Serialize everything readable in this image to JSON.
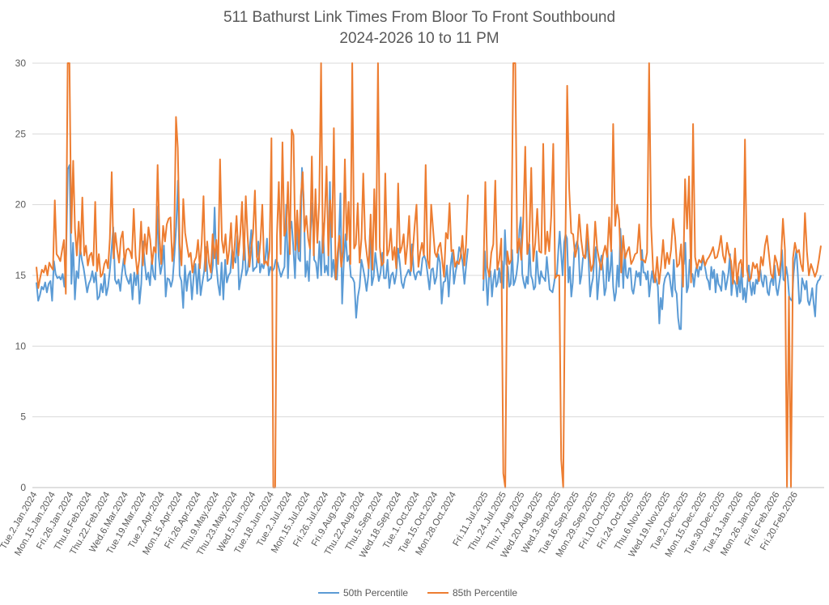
{
  "chart_data": {
    "type": "line",
    "title": "511 Bathurst Link Times From Bloor To Front Southbound",
    "subtitle": "2024-2026 10 to 11 PM",
    "xlabel": "",
    "ylabel": "",
    "ylim": [
      0,
      30
    ],
    "yticks": [
      0,
      5,
      10,
      15,
      20,
      25,
      30
    ],
    "grid": true,
    "legend_position": "bottom",
    "x_tick_labels": [
      "Tue.2.Jan.2024",
      "Mon.15.Jan.2024",
      "Fri.26.Jan.2024",
      "Thu.8.Feb.2024",
      "Thu.22.Feb.2024",
      "Wed.6.Mar.2024",
      "Tue.19.Mar.2024",
      "Tue.2.Apr.2024",
      "Mon.15.Apr.2024",
      "Fri.26.Apr.2024",
      "Thu.9.May.2024",
      "Thu.23.May.2024",
      "Wed.5.Jun.2024",
      "Tue.18.Jun.2024",
      "Tue.2.Jul.2024",
      "Mon.15.Jul.2024",
      "Fri.26.Jul.2024",
      "Fri.9.Aug.2024",
      "Thu.22.Aug.2024",
      "Thu.5.Sep.2024",
      "Wed.18.Sep.2024",
      "Tue.1.Oct.2024",
      "Tue.15.Oct.2024",
      "Mon.28.Oct.2024",
      "Fri.11.Jul.2025",
      "Thu.24.Jul.2025",
      "Thu.7.Aug.2025",
      "Wed.20.Aug.2025",
      "Wed.3.Sep.2025",
      "Tue.16.Sep.2025",
      "Mon.29.Sep.2025",
      "Fri.10.Oct.2025",
      "Fri.24.Oct.2025",
      "Thu.6.Nov.2025",
      "Wed.19.Nov.2025",
      "Tue.2.Dec.2025",
      "Mon.15.Dec.2025",
      "Tue.30.Dec.2025",
      "Tue.13.Jan.2026",
      "Mon.26.Jan.2026",
      "Fri.6.Feb.2026",
      "Fri.20.Feb.2026"
    ],
    "series": [
      {
        "name": "50th Percentile",
        "color": "#5b9bd5",
        "segments": [
          [
            14.5,
            13.2,
            13.6,
            14.2,
            14.0,
            14.5,
            13.8,
            14.4,
            14.6,
            13.2,
            16.0,
            15.1,
            14.8,
            14.9,
            14.7,
            15.1,
            14.2,
            16.5,
            22.5,
            22.8,
            14.4,
            17.3,
            13.3,
            15.3,
            14.8,
            17.0,
            16.1,
            15.5,
            14.7,
            13.8,
            14.4,
            14.7,
            15.3,
            14.5,
            15.2,
            13.3,
            13.5,
            14.4,
            13.8,
            15.1,
            13.6,
            14.2,
            15.3,
            16.8,
            18.4,
            14.7,
            14.4,
            14.7,
            13.9,
            15.2,
            16.2,
            15.1,
            14.7,
            14.4,
            15.1,
            13.3,
            15.2,
            14.3,
            15.6,
            13.0,
            14.4,
            17.4,
            15.9,
            14.7,
            15.2,
            14.3,
            16.1,
            15.0,
            14.7,
            19.9,
            16.3,
            15.1,
            15.8,
            17.1,
            13.5,
            14.8,
            14.7,
            14.2,
            14.7,
            16.5,
            18.4,
            21.7,
            15.0,
            14.6,
            12.7,
            15.7,
            13.9,
            15.0,
            15.3,
            13.3,
            14.9,
            15.8,
            13.7,
            15.8,
            13.6,
            14.5,
            15.3,
            17.0,
            14.6,
            14.7,
            14.8,
            15.7,
            19.8,
            15.7,
            14.4,
            13.6,
            15.9,
            13.3,
            16.1,
            14.5,
            15.0,
            15.2,
            16.8,
            16.3,
            15.9,
            17.8,
            14.0,
            14.8,
            15.5,
            17.5,
            15.0,
            15.4,
            16.8,
            18.2,
            15.3,
            15.5,
            15.6,
            17.4,
            15.2,
            15.8,
            15.5,
            16.1,
            17.6,
            15.0,
            15.6,
            15.3,
            15.5,
            16.1,
            15.9,
            15.4,
            14.9,
            15.3,
            15.6,
            20.0,
            14.8,
            18.1,
            18.8,
            17.1,
            14.8,
            18.6,
            16.2,
            16.0,
            22.6,
            20.3,
            14.9,
            16.0,
            14.6,
            18.2,
            20.1,
            16.1,
            15.9,
            14.8,
            17.4,
            15.0,
            18.7,
            15.2,
            15.7,
            15.0,
            21.6,
            14.9,
            16.1,
            14.8,
            14.7,
            17.1,
            20.8,
            13.0,
            16.1,
            17.9,
            16.0,
            16.4,
            14.9,
            14.8,
            14.5,
            12.0,
            13.5,
            14.2,
            16.1,
            15.5,
            14.8,
            13.9,
            15.0,
            18.3,
            14.3,
            14.9,
            16.6,
            15.5,
            14.6,
            15.2,
            16.6,
            14.8,
            14.8,
            16.1,
            14.1,
            15.0,
            15.2,
            14.4,
            15.1,
            16.9,
            15.9,
            14.5,
            14.1,
            14.8,
            15.1,
            15.4,
            15.0,
            17.2,
            15.2,
            14.7,
            15.2,
            15.3,
            15.0,
            16.2,
            16.4,
            16.0,
            15.0,
            14.0,
            15.4,
            15.5,
            14.4,
            14.9,
            16.5,
            15.9,
            13.0,
            14.5,
            14.6,
            15.7,
            13.5,
            15.6,
            16.6,
            14.4,
            15.3,
            15.9,
            17.0,
            16.6,
            15.9,
            14.4,
            15.7,
            16.9
          ],
          [
            13.9,
            16.7,
            14.7,
            12.9,
            15.0,
            15.3,
            13.5,
            14.7,
            15.4,
            14.2,
            14.5,
            15.5,
            14.5,
            16.0,
            14.1,
            18.2,
            15.8,
            15.6,
            14.2,
            14.4,
            16.8,
            14.3,
            14.6,
            15.1,
            16.0,
            18.2,
            19.1,
            15.1,
            14.5,
            14.1,
            14.9,
            14.4,
            17.2,
            15.0,
            14.7,
            14.0,
            14.2,
            16.7,
            15.1,
            14.4,
            15.3,
            14.9,
            14.8,
            14.6,
            16.3,
            15.1,
            14.0,
            13.9,
            13.8,
            14.4,
            15.1,
            15.0,
            16.8,
            18.1,
            16.5,
            15.0,
            17.3,
            17.9,
            17.6,
            14.5,
            15.6,
            13.5,
            14.5,
            16.6,
            17.1,
            17.4,
            16.9,
            14.4,
            15.0,
            16.2,
            16.4,
            16.3,
            17.6,
            16.0,
            13.5,
            14.3,
            14.8,
            16.2,
            17.0,
            13.3,
            14.6,
            15.9,
            16.4,
            15.3,
            13.6,
            14.1,
            16.9,
            14.6,
            15.3,
            16.8,
            14.2,
            13.2,
            13.8,
            15.7,
            14.2,
            18.3,
            16.4,
            14.1,
            16.8,
            15.0,
            14.8,
            15.5,
            15.5,
            14.0,
            13.7,
            14.4,
            15.3,
            14.9,
            15.2,
            14.3,
            16.8,
            15.2,
            15.2,
            14.7,
            15.3,
            13.5,
            14.5,
            15.3,
            14.5,
            15.0,
            14.7,
            14.2,
            11.6,
            13.4,
            12.6,
            14.3,
            14.8,
            15.0,
            15.2,
            15.0,
            14.2,
            13.5,
            16.1,
            14.0,
            13.7,
            12.0,
            11.2,
            11.2,
            15.8,
            15.8,
            17.3,
            13.8,
            14.2,
            16.1,
            14.9,
            15.1,
            14.2,
            15.2,
            15.7,
            14.9,
            15.6,
            15.4,
            16.1,
            15.9,
            15.4,
            14.8,
            14.6,
            14.0,
            15.6,
            14.8,
            15.4,
            13.8,
            15.1,
            14.4,
            14.2,
            13.9,
            15.3,
            15.1,
            14.0,
            14.6,
            15.2,
            16.5,
            13.6,
            14.7,
            14.6,
            14.3,
            13.5,
            14.9,
            13.8,
            15.6,
            13.3,
            14.1,
            13.1,
            14.3,
            15.7,
            14.3,
            13.6,
            14.5,
            13.7,
            14.7,
            14.4,
            15.2,
            15.4,
            14.6,
            14.2,
            15.0,
            14.9,
            13.8,
            13.6,
            14.5,
            14.8,
            14.3,
            15.7,
            14.1,
            13.6,
            14.3,
            15.0,
            16.8,
            14.7,
            14.6,
            15.6,
            14.9,
            13.5,
            13.3,
            13.2,
            15.0,
            16.1,
            16.8,
            15.1,
            13.0,
            13.2,
            14.8,
            14.4,
            14.0,
            14.6,
            13.2,
            12.9,
            13.4,
            14.1,
            13.0,
            12.1,
            14.3,
            14.6,
            14.7,
            15.0
          ]
        ]
      },
      {
        "name": "85th Percentile",
        "color": "#ed7d31",
        "segments": [
          [
            15.6,
            14.1,
            14.8,
            15.4,
            15.2,
            15.7,
            15.0,
            15.9,
            15.6,
            15.4,
            20.3,
            16.5,
            16.3,
            16.0,
            16.8,
            17.5,
            13.7,
            30.0,
            30.0,
            18.0,
            23.1,
            18.3,
            16.4,
            18.8,
            16.5,
            20.5,
            16.4,
            17.1,
            15.7,
            16.4,
            16.6,
            15.7,
            20.2,
            15.3,
            16.5,
            14.9,
            15.1,
            15.8,
            16.1,
            15.5,
            17.6,
            22.3,
            16.2,
            18.0,
            16.8,
            15.9,
            17.6,
            18.1,
            15.8,
            16.8,
            16.9,
            16.7,
            16.2,
            19.7,
            16.4,
            15.1,
            16.1,
            18.8,
            15.7,
            17.9,
            16.5,
            18.4,
            17.5,
            15.8,
            17.0,
            16.6,
            22.8,
            17.7,
            15.8,
            18.5,
            17.4,
            18.6,
            19.0,
            19.1,
            16.0,
            17.4,
            26.2,
            24.0,
            17.2,
            15.7,
            20.4,
            18.0,
            17.1,
            16.3,
            16.6,
            15.2,
            16.0,
            16.3,
            17.5,
            15.5,
            17.3,
            20.6,
            15.3,
            17.4,
            15.9,
            15.2,
            17.9,
            16.2,
            17.5,
            15.8,
            23.2,
            17.5,
            16.6,
            17.9,
            15.8,
            16.8,
            18.7,
            15.5,
            17.2,
            19.2,
            16.4,
            17.9,
            20.2,
            16.1,
            20.6,
            17.8,
            15.6,
            16.9,
            18.0,
            21.0,
            16.3,
            15.9,
            17.4,
            20.0,
            15.8,
            16.0,
            15.7,
            16.8,
            24.7,
            0.0,
            0.0,
            17.8,
            21.6,
            16.5,
            24.4,
            17.8,
            18.3,
            21.6,
            16.5,
            25.3,
            24.9,
            16.8,
            19.6,
            16.7,
            20.6,
            22.3,
            18.1,
            19.2,
            17.6,
            16.9,
            23.4,
            16.4,
            21.1,
            17.3,
            20.2,
            30.0,
            16.6,
            19.1,
            22.7,
            16.4,
            20.3,
            17.7,
            25.4,
            14.7,
            16.6,
            17.8,
            15.6,
            16.7,
            23.2,
            17.5,
            20.2,
            15.8,
            30.0,
            16.9,
            17.2,
            20.1,
            15.9,
            17.6,
            22.2,
            17.6,
            16.4,
            15.5,
            19.3,
            15.4,
            21.1,
            16.8,
            30.0,
            17.0,
            15.7,
            15.9,
            22.2,
            16.4,
            16.8,
            18.3,
            16.1,
            17.0,
            15.5,
            21.5,
            16.6,
            17.0,
            17.9,
            15.8,
            17.2,
            19.2,
            15.3,
            16.8,
            18.5,
            20.0,
            15.6,
            16.6,
            17.3,
            16.4,
            22.8,
            16.1,
            15.5,
            20.0,
            18.3,
            16.6,
            16.3,
            17.0,
            17.3,
            16.1,
            14.9,
            18.0,
            17.6,
            20.1,
            16.7,
            16.8,
            15.6,
            16.0,
            15.8,
            16.3,
            17.8,
            15.7,
            17.2,
            20.7
          ],
          [
            14.7,
            21.6,
            15.6,
            14.9,
            16.6,
            17.2,
            21.7,
            15.4,
            16.1,
            17.6,
            1.0,
            0.0,
            16.7,
            15.8,
            16.1,
            30.0,
            30.0,
            16.6,
            17.6,
            16.1,
            18.8,
            24.1,
            16.5,
            17.4,
            22.6,
            16.0,
            17.3,
            19.7,
            16.7,
            16.6,
            24.3,
            16.5,
            18.1,
            16.7,
            19.2,
            24.3,
            14.8,
            15.0,
            15.0,
            2.0,
            0.0,
            16.1,
            28.4,
            21.1,
            18.0,
            17.9,
            16.3,
            17.0,
            19.3,
            17.5,
            16.4,
            16.2,
            18.6,
            16.6,
            15.3,
            15.8,
            18.8,
            16.9,
            16.1,
            15.4,
            16.5,
            17.1,
            16.3,
            19.1,
            16.7,
            25.7,
            18.5,
            20.0,
            18.9,
            15.2,
            17.8,
            16.2,
            16.7,
            17.0,
            15.8,
            16.1,
            16.5,
            16.6,
            18.6,
            16.1,
            16.1,
            15.9,
            16.6,
            30.0,
            18.5,
            15.4,
            14.5,
            16.3,
            14.4,
            15.7,
            17.5,
            15.5,
            16.6,
            15.8,
            16.8,
            19.0,
            17.7,
            15.6,
            15.8,
            17.2,
            14.2,
            21.8,
            18.3,
            22.0,
            14.5,
            25.7,
            16.3,
            15.5,
            16.1,
            15.9,
            16.4,
            15.7,
            16.1,
            16.3,
            16.6,
            17.0,
            16.2,
            16.3,
            16.9,
            17.8,
            16.4,
            15.9,
            17.3,
            16.5,
            16.0,
            14.4,
            16.9,
            14.4,
            15.8,
            16.1,
            14.9,
            24.6,
            15.4,
            14.6,
            14.8,
            15.9,
            15.5,
            15.8,
            14.6,
            16.3,
            15.7,
            17.1,
            17.8,
            16.5,
            15.1,
            14.8,
            16.4,
            15.9,
            15.0,
            16.1,
            19.0,
            16.8,
            0.0,
            13.5,
            0.0,
            16.2,
            17.3,
            16.6,
            16.8,
            15.8,
            15.3,
            19.4,
            16.7,
            15.0,
            15.8,
            15.4,
            14.9,
            15.3,
            16.1,
            17.1
          ]
        ]
      }
    ]
  }
}
